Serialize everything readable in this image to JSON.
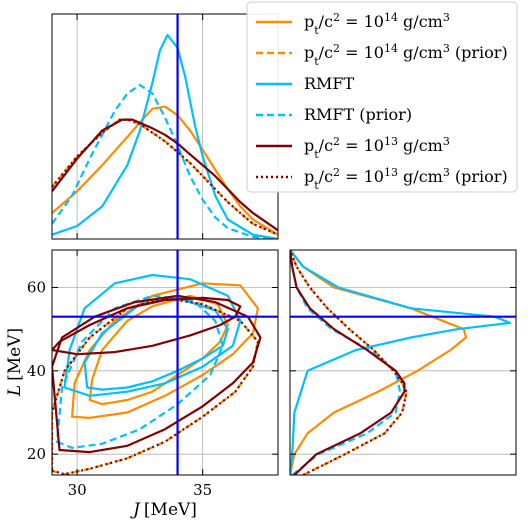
{
  "chart_data": {
    "type": "corner",
    "xlabel": "J [MeV]",
    "ylabel": "L [MeV]",
    "xlim": [
      29,
      38
    ],
    "ylim": [
      15,
      69
    ],
    "xticks": [
      "30",
      "35"
    ],
    "yticks": [
      "20",
      "40",
      "60"
    ],
    "reference": {
      "J": 34,
      "L": 53
    },
    "colors": {
      "orange": "#ff8c00",
      "cyan": "#00bfff",
      "maroon": "#800000",
      "blue": "#0000ff",
      "grid": "#b0b0b0"
    },
    "legend": {
      "position": "top-right",
      "entries": [
        {
          "label": "p_t/c^2 = 10^14 g/cm^3",
          "color": "#ff8c00",
          "style": "solid"
        },
        {
          "label": "p_t/c^2 = 10^14 g/cm^3 (prior)",
          "color": "#ff8c00",
          "style": "dashed"
        },
        {
          "label": "RMFT",
          "color": "#00bfff",
          "style": "solid"
        },
        {
          "label": "RMFT (prior)",
          "color": "#00bfff",
          "style": "dashed"
        },
        {
          "label": "p_t/c^2 = 10^13 g/cm^3",
          "color": "#800000",
          "style": "solid"
        },
        {
          "label": "p_t/c^2 = 10^13 g/cm^3 (prior)",
          "color": "#800000",
          "style": "dotted"
        }
      ]
    },
    "marginal_J": [
      {
        "name": "orange",
        "style": "solid",
        "J": [
          29,
          30,
          31,
          32,
          32.6,
          33,
          33.5,
          34,
          34.5,
          35,
          35.5,
          36,
          36.5,
          37,
          38
        ],
        "density": [
          0.12,
          0.22,
          0.34,
          0.47,
          0.55,
          0.6,
          0.61,
          0.57,
          0.5,
          0.41,
          0.32,
          0.23,
          0.15,
          0.09,
          0.02
        ]
      },
      {
        "name": "orange",
        "style": "dashed",
        "J": [
          29,
          30,
          31,
          31.7,
          32,
          32.5,
          33,
          33.5,
          34,
          34.5,
          35,
          35.5,
          36,
          36.5,
          37,
          38
        ],
        "density": [
          0.24,
          0.38,
          0.49,
          0.55,
          0.55,
          0.53,
          0.49,
          0.45,
          0.4,
          0.35,
          0.29,
          0.23,
          0.17,
          0.12,
          0.07,
          0.02
        ]
      },
      {
        "name": "cyan",
        "style": "solid",
        "J": [
          29,
          30,
          31,
          32,
          32.5,
          33,
          33.3,
          33.6,
          34,
          34.3,
          34.7,
          35,
          35.5,
          36,
          37,
          38
        ],
        "density": [
          0.02,
          0.06,
          0.15,
          0.34,
          0.5,
          0.72,
          0.87,
          0.94,
          0.88,
          0.75,
          0.52,
          0.38,
          0.2,
          0.09,
          0.02,
          0.0
        ]
      },
      {
        "name": "cyan",
        "style": "dashed",
        "J": [
          29,
          29.8,
          30.5,
          31,
          31.5,
          32,
          32.5,
          33,
          33.5,
          34,
          34.5,
          35,
          35.5,
          36,
          37,
          38
        ],
        "density": [
          0.07,
          0.2,
          0.37,
          0.48,
          0.59,
          0.67,
          0.71,
          0.67,
          0.56,
          0.43,
          0.29,
          0.18,
          0.1,
          0.05,
          0.01,
          0.0
        ]
      },
      {
        "name": "maroon",
        "style": "solid",
        "J": [
          29,
          30,
          31,
          31.8,
          32.2,
          33,
          33.5,
          34,
          34.5,
          35,
          35.5,
          36,
          36.5,
          37,
          38
        ],
        "density": [
          0.22,
          0.37,
          0.5,
          0.55,
          0.55,
          0.51,
          0.48,
          0.44,
          0.39,
          0.34,
          0.29,
          0.23,
          0.17,
          0.12,
          0.04
        ]
      },
      {
        "name": "maroon",
        "style": "dotted",
        "J": [
          29,
          30,
          31,
          31.7,
          32,
          32.5,
          33,
          33.5,
          34,
          34.5,
          35,
          35.5,
          36,
          36.5,
          37,
          38
        ],
        "density": [
          0.24,
          0.38,
          0.49,
          0.55,
          0.55,
          0.53,
          0.49,
          0.45,
          0.4,
          0.35,
          0.29,
          0.23,
          0.17,
          0.12,
          0.07,
          0.02
        ]
      }
    ],
    "marginal_L": [
      {
        "name": "orange",
        "style": "solid",
        "L": [
          15,
          20,
          25,
          30,
          35,
          40,
          45,
          48,
          50,
          55,
          60,
          65,
          69
        ],
        "density": [
          0.0,
          0.02,
          0.08,
          0.2,
          0.4,
          0.58,
          0.73,
          0.8,
          0.79,
          0.55,
          0.2,
          0.06,
          0.0
        ]
      },
      {
        "name": "orange",
        "style": "dashed",
        "L": [
          15,
          20,
          25,
          30,
          35,
          38,
          40,
          45,
          50,
          55,
          60,
          65,
          69
        ],
        "density": [
          0.06,
          0.25,
          0.43,
          0.51,
          0.53,
          0.5,
          0.47,
          0.38,
          0.27,
          0.17,
          0.09,
          0.03,
          0.0
        ]
      },
      {
        "name": "cyan",
        "style": "solid",
        "L": [
          15,
          20,
          30,
          40,
          45,
          48,
          50,
          51.5,
          53,
          55,
          60,
          65,
          69
        ],
        "density": [
          0.0,
          0.01,
          0.02,
          0.08,
          0.3,
          0.55,
          0.76,
          1.0,
          0.93,
          0.55,
          0.22,
          0.06,
          0.0
        ]
      },
      {
        "name": "cyan",
        "style": "dashed",
        "L": [
          15,
          20,
          25,
          30,
          35,
          40,
          45,
          50,
          55,
          60,
          65,
          69
        ],
        "density": [
          0.01,
          0.13,
          0.35,
          0.48,
          0.5,
          0.48,
          0.36,
          0.19,
          0.08,
          0.03,
          0.01,
          0.0
        ]
      },
      {
        "name": "maroon",
        "style": "solid",
        "L": [
          15,
          20,
          25,
          30,
          35,
          37,
          40,
          45,
          50,
          55,
          60,
          65,
          69
        ],
        "density": [
          0.02,
          0.12,
          0.32,
          0.46,
          0.52,
          0.52,
          0.48,
          0.35,
          0.2,
          0.09,
          0.03,
          0.01,
          0.0
        ]
      },
      {
        "name": "maroon",
        "style": "dotted",
        "L": [
          15,
          20,
          25,
          30,
          35,
          38,
          40,
          45,
          50,
          55,
          60,
          65,
          69
        ],
        "density": [
          0.06,
          0.25,
          0.43,
          0.51,
          0.53,
          0.5,
          0.47,
          0.38,
          0.27,
          0.17,
          0.09,
          0.03,
          0.0
        ]
      }
    ],
    "contours_JL": [
      {
        "name": "orange-inner",
        "color": "orange",
        "style": "solid",
        "J": [
          30.5,
          31,
          32,
          33,
          34,
          35,
          35.7,
          36,
          35.6,
          34.5,
          33,
          32,
          31,
          30.6,
          30.5
        ],
        "L": [
          33,
          32,
          33,
          35,
          39,
          43,
          47,
          51,
          56,
          58,
          55.5,
          52,
          45,
          38,
          33
        ]
      },
      {
        "name": "orange-outer",
        "color": "orange",
        "style": "solid",
        "J": [
          29.8,
          30.5,
          32,
          33.5,
          35,
          36.2,
          37,
          37.2,
          36.5,
          35,
          33,
          31.5,
          30.5,
          29.9,
          29.8
        ],
        "L": [
          29,
          28.7,
          30,
          34,
          39,
          44,
          49,
          55,
          60.5,
          61,
          58,
          52,
          45,
          37,
          29
        ]
      },
      {
        "name": "orange-prior",
        "color": "orange",
        "style": "dashed",
        "J": [
          29,
          29.5,
          30.5,
          32,
          33.5,
          35,
          36.3,
          37,
          37.2,
          36.5,
          35,
          33.5,
          32,
          30.5,
          29.5,
          29
        ],
        "L": [
          16,
          15.2,
          16.5,
          19,
          23,
          29,
          35,
          41,
          47,
          52,
          56,
          57.5,
          55,
          48,
          40,
          30
        ]
      },
      {
        "name": "cyan-inner",
        "color": "cyan",
        "style": "solid",
        "J": [
          30.4,
          31,
          32,
          33,
          34,
          35,
          35.8,
          36,
          35.5,
          34,
          32.5,
          31,
          30.3,
          30.4
        ],
        "L": [
          36,
          35.5,
          36,
          37.5,
          40,
          43,
          46,
          50,
          54.5,
          57.5,
          56,
          49,
          42,
          36
        ]
      },
      {
        "name": "cyan-outer",
        "color": "cyan",
        "style": "solid",
        "J": [
          29.5,
          30.5,
          32,
          33.5,
          35,
          36.2,
          36.5,
          36,
          34.5,
          33,
          31.5,
          30.3,
          29.7,
          29.5
        ],
        "L": [
          36,
          34,
          35,
          37,
          41,
          46,
          52,
          58,
          62,
          63,
          61,
          55,
          45,
          36
        ]
      },
      {
        "name": "cyan-prior",
        "color": "cyan",
        "style": "dashed",
        "J": [
          29.2,
          29.8,
          31,
          32.5,
          34,
          35.3,
          35.8,
          35.5,
          34.6,
          33,
          31.5,
          30.2,
          29.4,
          29.2
        ],
        "L": [
          23,
          21.5,
          22.5,
          26,
          32,
          39,
          46,
          52,
          57,
          58,
          55,
          47,
          36,
          23
        ]
      },
      {
        "name": "maroon-inner",
        "color": "maroon",
        "style": "solid",
        "J": [
          29,
          30,
          31.5,
          33,
          34.5,
          35.7,
          36.3,
          36.5,
          36,
          35,
          33.5,
          32,
          30.5,
          29.3,
          29
        ],
        "L": [
          45,
          44,
          44.5,
          46,
          48.5,
          51,
          53,
          55.5,
          57,
          57.5,
          57,
          55,
          51,
          47,
          45
        ]
      },
      {
        "name": "maroon-outer",
        "color": "maroon",
        "style": "solid",
        "J": [
          29.3,
          30.5,
          32,
          33.5,
          35,
          36.2,
          37,
          37.3,
          36.8,
          35.5,
          34,
          32.3,
          30.7,
          29.4,
          29,
          29.3
        ],
        "L": [
          21,
          20.5,
          22,
          26,
          31.5,
          37,
          42,
          48,
          53,
          56.5,
          58,
          56.5,
          53,
          48,
          41,
          21
        ]
      },
      {
        "name": "maroon-prior",
        "color": "maroon",
        "style": "dotted",
        "J": [
          29,
          29.5,
          30.5,
          32,
          33.5,
          35,
          36.3,
          37,
          37.2,
          36.5,
          35,
          33.5,
          32,
          30.5,
          29.5,
          29
        ],
        "L": [
          16,
          15.2,
          16.5,
          19,
          23,
          29,
          35,
          41,
          47,
          52,
          56,
          57.5,
          55,
          48,
          40,
          30
        ]
      }
    ]
  }
}
